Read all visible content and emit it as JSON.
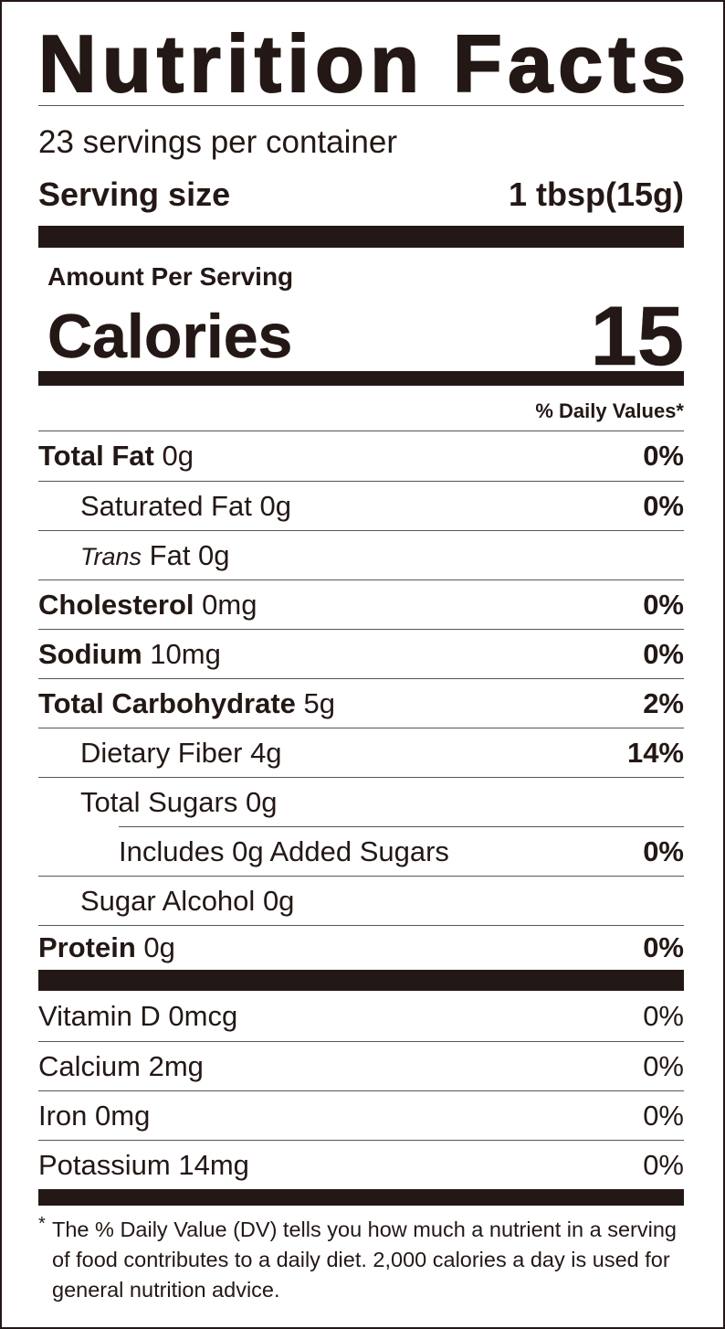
{
  "title": "Nutrition Facts",
  "servings_per_container": "23 servings per container",
  "serving_size": {
    "label": "Serving size",
    "value": "1 tbsp(15g)"
  },
  "amount_per_serving": "Amount Per Serving",
  "calories": {
    "label": "Calories",
    "value": "15"
  },
  "daily_values_header": "% Daily Values*",
  "nutrients": [
    {
      "name": "Total Fat",
      "amount": "0g",
      "dv": "0%"
    },
    {
      "name": "Saturated Fat",
      "amount": "0g",
      "dv": "0%"
    },
    {
      "name": "Trans",
      "amount": "Fat 0g",
      "dv": ""
    },
    {
      "name": "Cholesterol",
      "amount": "0mg",
      "dv": "0%"
    },
    {
      "name": "Sodium",
      "amount": "10mg",
      "dv": "0%"
    },
    {
      "name": "Total Carbohydrate",
      "amount": "5g",
      "dv": "2%"
    },
    {
      "name": "Dietary Fiber",
      "amount": "4g",
      "dv": "14%"
    },
    {
      "name": "Total Sugars",
      "amount": "0g",
      "dv": ""
    },
    {
      "name": "Includes 0g Added Sugars",
      "amount": "",
      "dv": "0%"
    },
    {
      "name": "Sugar Alcohol",
      "amount": "0g",
      "dv": ""
    },
    {
      "name": "Protein",
      "amount": "0g",
      "dv": "0%"
    }
  ],
  "vitamins": [
    {
      "name": "Vitamin D 0mcg",
      "dv": "0%"
    },
    {
      "name": "Calcium 2mg",
      "dv": "0%"
    },
    {
      "name": "Iron 0mg",
      "dv": "0%"
    },
    {
      "name": "Potassium 14mg",
      "dv": "0%"
    }
  ],
  "footnote": {
    "asterisk": "*",
    "text": "The % Daily Value (DV) tells you how much a nutrient in a serving of food contributes to a daily diet. 2,000 calories a day is used for general nutrition advice."
  },
  "colors": {
    "ink": "#231815",
    "rule": "#555555"
  }
}
